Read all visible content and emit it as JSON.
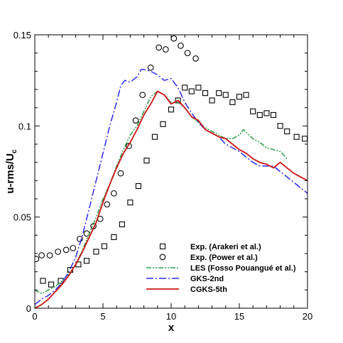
{
  "chart_data": {
    "type": "line",
    "xlabel": "x",
    "ylabel_main": "u-rms/U",
    "ylabel_sub": "c",
    "xlim": [
      0,
      20
    ],
    "ylim": [
      0,
      0.15
    ],
    "xticks": [
      0,
      5,
      10,
      15,
      20
    ],
    "xtick_labels": [
      "0",
      "5",
      "10",
      "15",
      "20"
    ],
    "yticks": [
      0,
      0.05,
      0.1,
      0.15
    ],
    "ytick_labels": [
      "0",
      "0.05",
      "0.1",
      "0.15"
    ],
    "grid": false,
    "legend_position": "lower-right",
    "series": [
      {
        "name": "Exp. (Arakeri et al.)",
        "style": "markers",
        "marker": "square",
        "color": "#000000",
        "x": [
          0.6,
          1.2,
          1.9,
          2.6,
          3.2,
          3.8,
          4.5,
          5.1,
          5.8,
          6.4,
          7.0,
          7.6,
          8.2,
          8.8,
          9.4,
          10.0,
          10.5,
          11.0,
          11.5,
          12.0,
          12.5,
          13.0,
          13.5,
          14.0,
          14.5,
          15.0,
          15.5,
          16.0,
          16.5,
          17.0,
          17.5,
          18.0,
          18.5,
          19.2,
          19.8
        ],
        "y": [
          0.015,
          0.013,
          0.015,
          0.021,
          0.024,
          0.026,
          0.031,
          0.034,
          0.039,
          0.046,
          0.058,
          0.067,
          0.081,
          0.094,
          0.101,
          0.109,
          0.114,
          0.121,
          0.119,
          0.121,
          0.118,
          0.114,
          0.118,
          0.117,
          0.113,
          0.116,
          0.117,
          0.108,
          0.106,
          0.107,
          0.106,
          0.1,
          0.097,
          0.094,
          0.093
        ]
      },
      {
        "name": "Exp. (Power et al.)",
        "style": "markers",
        "marker": "circle",
        "color": "#000000",
        "x": [
          0.1,
          0.5,
          1.1,
          1.7,
          2.3,
          2.8,
          3.3,
          3.8,
          4.3,
          4.8,
          5.3,
          5.8,
          6.3,
          6.9,
          7.4,
          7.9,
          8.5,
          9.1,
          9.6,
          10.2,
          10.7,
          11.2,
          11.8
        ],
        "y": [
          0.027,
          0.029,
          0.029,
          0.031,
          0.032,
          0.033,
          0.038,
          0.041,
          0.045,
          0.049,
          0.057,
          0.063,
          0.074,
          0.089,
          0.103,
          0.117,
          0.132,
          0.143,
          0.142,
          0.148,
          0.144,
          0.14,
          0.137
        ]
      },
      {
        "name": "LES (Fosso Pouangué et al.)",
        "style": "dash-dot-dot",
        "color": "#2a9d48",
        "x": [
          0,
          0.5,
          1.0,
          1.5,
          2.0,
          2.5,
          3.0,
          3.5,
          4.0,
          4.5,
          5.0,
          5.5,
          6.0,
          6.5,
          7.0,
          7.5,
          8.0,
          8.5,
          9.0,
          9.5,
          10.0,
          10.5,
          11.0,
          11.5,
          12.0,
          12.5,
          13.0,
          13.5,
          14.0,
          14.5,
          15.0,
          15.3,
          15.7,
          16.0,
          16.5,
          17.0,
          17.5,
          18.0,
          18.5
        ],
        "y": [
          0.01,
          0.008,
          0.01,
          0.012,
          0.015,
          0.019,
          0.024,
          0.032,
          0.041,
          0.05,
          0.06,
          0.068,
          0.078,
          0.087,
          0.095,
          0.1,
          0.108,
          0.116,
          0.119,
          0.117,
          0.113,
          0.113,
          0.11,
          0.105,
          0.102,
          0.099,
          0.097,
          0.095,
          0.093,
          0.093,
          0.095,
          0.098,
          0.095,
          0.093,
          0.091,
          0.088,
          0.087,
          0.086,
          0.082
        ]
      },
      {
        "name": "GKS-2nd",
        "style": "dash-dot",
        "color": "#2a2aee",
        "x": [
          0,
          0.5,
          1.0,
          1.5,
          2.0,
          2.5,
          3.0,
          3.5,
          4.0,
          4.5,
          5.0,
          5.5,
          6.0,
          6.3,
          6.6,
          7.0,
          7.5,
          7.8,
          8.0,
          8.5,
          9.0,
          9.5,
          10.0,
          10.5,
          11.0,
          11.5,
          12.0,
          12.5,
          13.0,
          13.5,
          14.0,
          14.5,
          15.0,
          15.5,
          16.0,
          16.5,
          17.0,
          17.5,
          18.0,
          18.5,
          19.0,
          19.5,
          20.0
        ],
        "y": [
          0.002,
          0.005,
          0.007,
          0.01,
          0.014,
          0.02,
          0.028,
          0.04,
          0.055,
          0.07,
          0.085,
          0.1,
          0.113,
          0.122,
          0.125,
          0.124,
          0.127,
          0.131,
          0.131,
          0.13,
          0.128,
          0.125,
          0.126,
          0.121,
          0.113,
          0.107,
          0.102,
          0.098,
          0.096,
          0.094,
          0.09,
          0.088,
          0.086,
          0.083,
          0.08,
          0.078,
          0.078,
          0.078,
          0.075,
          0.072,
          0.069,
          0.066,
          0.063
        ]
      },
      {
        "name": "CGKS-5th",
        "style": "solid",
        "color": "#cc1414",
        "x": [
          0,
          0.5,
          1.0,
          1.5,
          2.0,
          2.5,
          3.0,
          3.5,
          4.0,
          4.5,
          5.0,
          5.5,
          6.0,
          6.5,
          7.0,
          7.5,
          8.0,
          8.5,
          9.0,
          9.5,
          10.0,
          10.5,
          11.0,
          11.5,
          12.0,
          12.5,
          13.0,
          13.5,
          14.0,
          14.5,
          15.0,
          15.5,
          16.0,
          16.5,
          17.0,
          17.5,
          18.0,
          18.5,
          19.0,
          19.5,
          20.0
        ],
        "y": [
          0.0,
          0.002,
          0.005,
          0.009,
          0.013,
          0.018,
          0.024,
          0.031,
          0.039,
          0.047,
          0.058,
          0.068,
          0.077,
          0.085,
          0.091,
          0.098,
          0.106,
          0.112,
          0.119,
          0.117,
          0.112,
          0.114,
          0.11,
          0.105,
          0.103,
          0.098,
          0.096,
          0.094,
          0.093,
          0.09,
          0.087,
          0.085,
          0.082,
          0.08,
          0.079,
          0.077,
          0.08,
          0.077,
          0.074,
          0.072,
          0.07
        ]
      }
    ]
  }
}
